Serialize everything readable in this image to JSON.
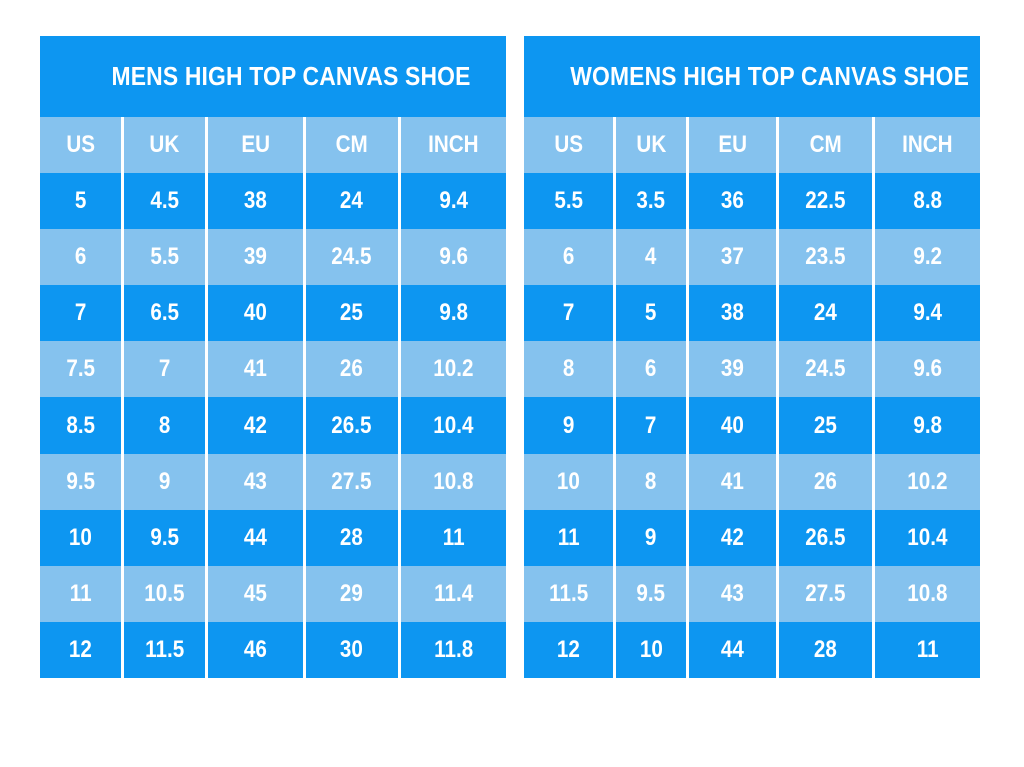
{
  "page": {
    "background": "#ffffff"
  },
  "colors": {
    "dark_blue": "#0d96f1",
    "light_blue": "#85c2ee",
    "separator": "#ffffff",
    "text": "#ffffff"
  },
  "chart_data": [
    {
      "type": "table",
      "title": "MENS HIGH TOP CANVAS SHOE",
      "columns": [
        "US",
        "UK",
        "EU",
        "CM",
        "INCH"
      ],
      "rows": [
        [
          "5",
          "4.5",
          "38",
          "24",
          "9.4"
        ],
        [
          "6",
          "5.5",
          "39",
          "24.5",
          "9.6"
        ],
        [
          "7",
          "6.5",
          "40",
          "25",
          "9.8"
        ],
        [
          "7.5",
          "7",
          "41",
          "26",
          "10.2"
        ],
        [
          "8.5",
          "8",
          "42",
          "26.5",
          "10.4"
        ],
        [
          "9.5",
          "9",
          "43",
          "27.5",
          "10.8"
        ],
        [
          "10",
          "9.5",
          "44",
          "28",
          "11"
        ],
        [
          "11",
          "10.5",
          "45",
          "29",
          "11.4"
        ],
        [
          "12",
          "11.5",
          "46",
          "30",
          "11.8"
        ]
      ],
      "layout": {
        "row_striping": "dark-light alternating starting dark",
        "header_row_color": "light_blue",
        "title_band_color": "dark_blue"
      }
    },
    {
      "type": "table",
      "title": "WOMENS HIGH TOP CANVAS SHOE",
      "columns": [
        "US",
        "UK",
        "EU",
        "CM",
        "INCH"
      ],
      "rows": [
        [
          "5.5",
          "3.5",
          "36",
          "22.5",
          "8.8"
        ],
        [
          "6",
          "4",
          "37",
          "23.5",
          "9.2"
        ],
        [
          "7",
          "5",
          "38",
          "24",
          "9.4"
        ],
        [
          "8",
          "6",
          "39",
          "24.5",
          "9.6"
        ],
        [
          "9",
          "7",
          "40",
          "25",
          "9.8"
        ],
        [
          "10",
          "8",
          "41",
          "26",
          "10.2"
        ],
        [
          "11",
          "9",
          "42",
          "26.5",
          "10.4"
        ],
        [
          "11.5",
          "9.5",
          "43",
          "27.5",
          "10.8"
        ],
        [
          "12",
          "10",
          "44",
          "28",
          "11"
        ]
      ],
      "layout": {
        "row_striping": "dark-light alternating starting dark",
        "header_row_color": "light_blue",
        "title_band_color": "dark_blue"
      }
    }
  ]
}
